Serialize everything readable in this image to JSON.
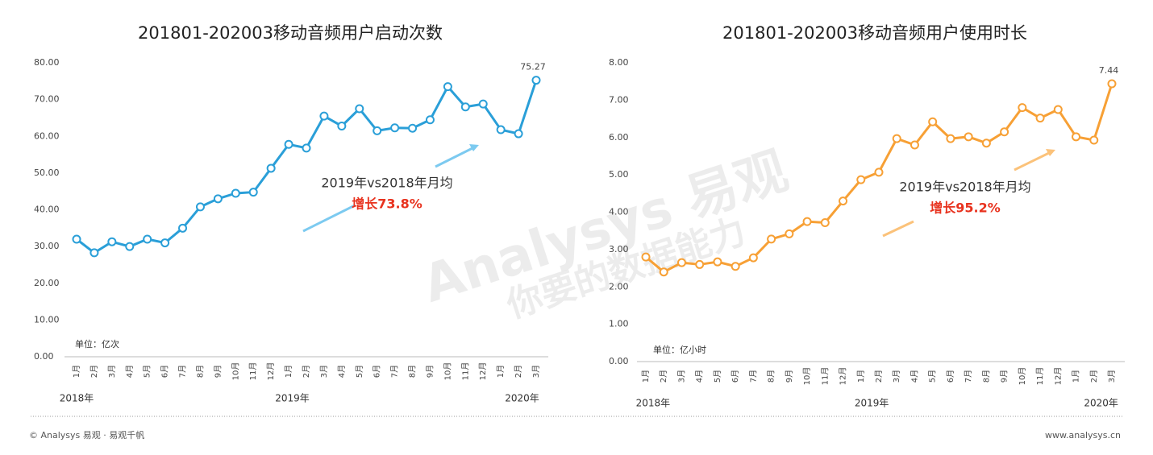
{
  "chart_data": [
    {
      "type": "line",
      "title": "201801-202003移动音频用户启动次数",
      "categories": [
        "1月",
        "2月",
        "3月",
        "4月",
        "5月",
        "6月",
        "7月",
        "8月",
        "9月",
        "10月",
        "11月",
        "12月",
        "1月",
        "2月",
        "3月",
        "4月",
        "5月",
        "6月",
        "7月",
        "8月",
        "9月",
        "10月",
        "11月",
        "12月",
        "1月",
        "2月",
        "3月"
      ],
      "years": [
        "2018年",
        "2019年",
        "2020年"
      ],
      "series": [
        {
          "name": "启动次数",
          "color": "#2a9fd8",
          "values": [
            32,
            28.3,
            31.3,
            30,
            32,
            31,
            35,
            40.8,
            43,
            44.5,
            44.8,
            51.3,
            57.8,
            56.8,
            65.5,
            62.8,
            67.5,
            61.5,
            62.3,
            62.2,
            64.5,
            73.5,
            68,
            68.8,
            61.8,
            60.7,
            75.27
          ]
        }
      ],
      "ylim": [
        0,
        80
      ],
      "yticks": [
        {
          "value": 0,
          "label": "0.00"
        },
        {
          "value": 10,
          "label": "10.00"
        },
        {
          "value": 20,
          "label": "20.00"
        },
        {
          "value": 30,
          "label": "30.00"
        },
        {
          "value": 40,
          "label": "40.00"
        },
        {
          "value": 50,
          "label": "50.00"
        },
        {
          "value": 60,
          "label": "60.00"
        },
        {
          "value": 70,
          "label": "70.00"
        },
        {
          "value": 80,
          "label": "80.00"
        }
      ],
      "grid": false,
      "unit": "单位：亿次",
      "annotation": {
        "text": "2019年vs2018年月均",
        "highlight": "增长73.8%"
      }
    },
    {
      "type": "line",
      "title": "201801-202003移动音频用户使用时长",
      "categories": [
        "1月",
        "2月",
        "3月",
        "4月",
        "5月",
        "6月",
        "7月",
        "8月",
        "9月",
        "10月",
        "11月",
        "12月",
        "1月",
        "2月",
        "3月",
        "4月",
        "5月",
        "6月",
        "7月",
        "8月",
        "9月",
        "10月",
        "11月",
        "12月",
        "1月",
        "2月",
        "3月"
      ],
      "years": [
        "2018年",
        "2019年",
        "2020年"
      ],
      "series": [
        {
          "name": "使用时长",
          "color": "#f7a035",
          "values": [
            2.8,
            2.4,
            2.65,
            2.6,
            2.67,
            2.55,
            2.78,
            3.28,
            3.42,
            3.75,
            3.72,
            4.3,
            4.87,
            5.07,
            5.97,
            5.8,
            6.42,
            5.97,
            6.02,
            5.85,
            6.15,
            6.8,
            6.52,
            6.75,
            6.02,
            5.93,
            7.44
          ]
        }
      ],
      "ylim": [
        0,
        8
      ],
      "yticks": [
        {
          "value": 0,
          "label": "0.00"
        },
        {
          "value": 1,
          "label": "1.00"
        },
        {
          "value": 2,
          "label": "2.00"
        },
        {
          "value": 3,
          "label": "3.00"
        },
        {
          "value": 4,
          "label": "4.00"
        },
        {
          "value": 5,
          "label": "5.00"
        },
        {
          "value": 6,
          "label": "6.00"
        },
        {
          "value": 7,
          "label": "7.00"
        },
        {
          "value": 8,
          "label": "8.00"
        }
      ],
      "grid": false,
      "unit": "单位：亿小时",
      "annotation": {
        "text": "2019年vs2018年月均",
        "highlight": "增长95.2%"
      }
    }
  ],
  "watermark": {
    "brand": "Analysys 易观",
    "slogan": "你要的数据能力"
  },
  "footer": {
    "left": "© Analysys 易观 · 易观千帆",
    "right": "www.analysys.cn"
  }
}
